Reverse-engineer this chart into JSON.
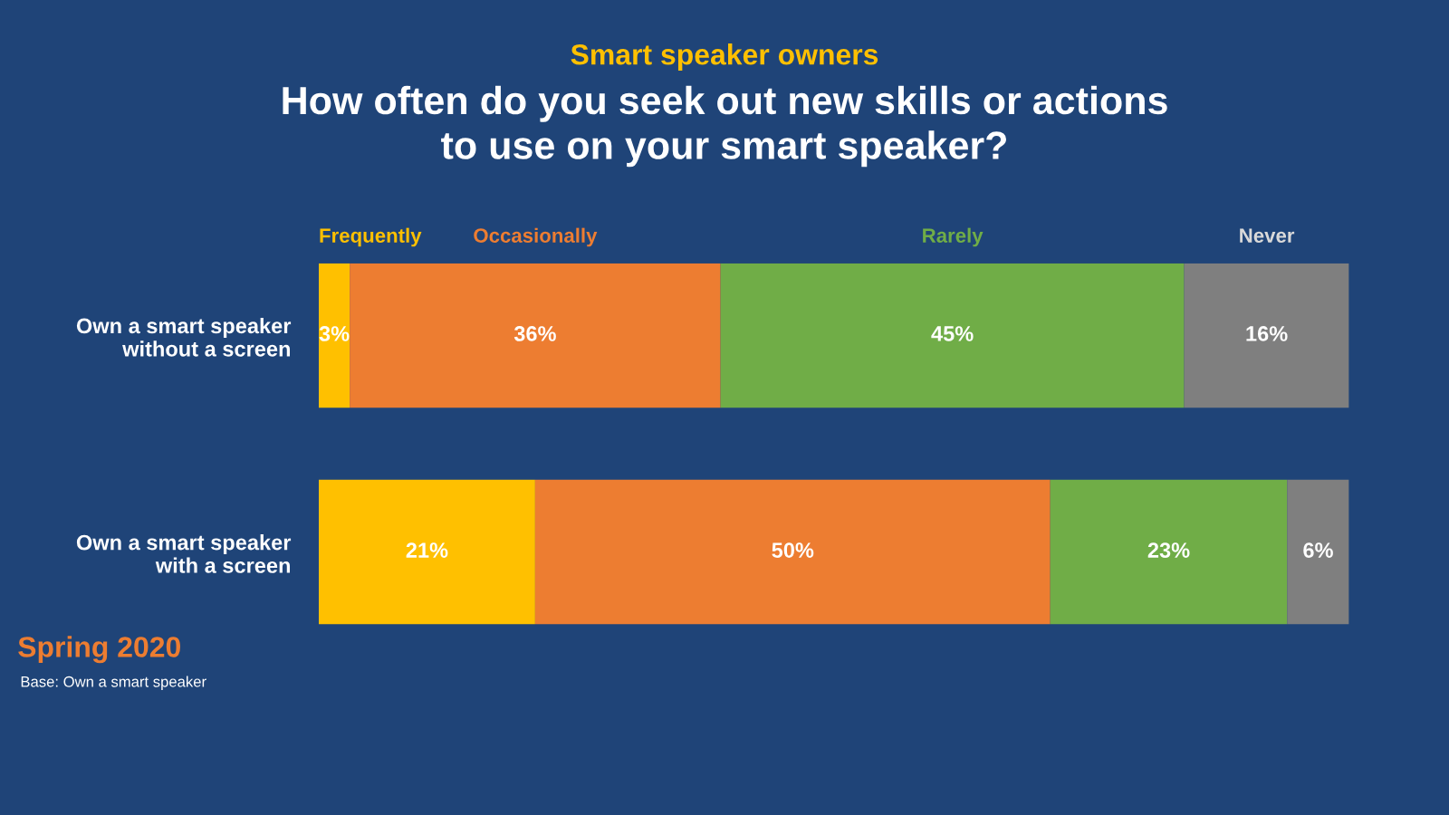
{
  "chart_data": {
    "type": "bar",
    "orientation": "horizontal",
    "stacked": true,
    "subtitle": "Smart speaker owners",
    "title": "How often do you seek out new skills or actions\nto use on your smart speaker?",
    "categories": [
      "Own a smart speaker\nwithout a screen",
      "Own a smart speaker\nwith a screen"
    ],
    "series": [
      {
        "name": "Frequently",
        "color": "#ffc000",
        "values": [
          3,
          21
        ],
        "value_labels": [
          "3%",
          "21%"
        ]
      },
      {
        "name": "Occasionally",
        "color": "#ed7d31",
        "values": [
          36,
          50
        ],
        "value_labels": [
          "36%",
          "50%"
        ]
      },
      {
        "name": "Rarely",
        "color": "#70ad47",
        "values": [
          45,
          23
        ],
        "value_labels": [
          "45%",
          "23%"
        ]
      },
      {
        "name": "Never",
        "color": "#7f7f7f",
        "values": [
          16,
          6
        ],
        "value_labels": [
          "16%",
          "6%"
        ]
      }
    ],
    "tick_labels": "y",
    "legend": "top",
    "annotations": [
      "Spring 2020",
      "Base: Own a smart speaker"
    ]
  }
}
